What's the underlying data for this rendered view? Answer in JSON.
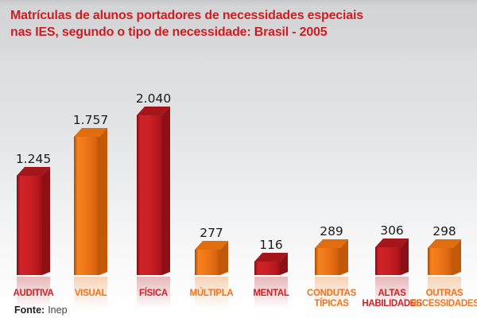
{
  "title": {
    "line1": "Matrículas de alunos portadores de necessidades especiais",
    "line2": "nas IES, segundo o tipo de necessidade: Brasil - 2005"
  },
  "source": {
    "label": "Fonte:",
    "value": "Inep"
  },
  "chart_data": {
    "type": "bar",
    "title": "Matrículas de alunos portadores de necessidades especiais nas IES, segundo o tipo de necessidade: Brasil - 2005",
    "categories": [
      "Auditiva",
      "Visual",
      "Física",
      "Múltipla",
      "Mental",
      "Condutas Típicas",
      "Altas Habilidades",
      "Outras Necessidades"
    ],
    "category_display": [
      [
        "AUDITIVA"
      ],
      [
        "VISUAL"
      ],
      [
        "FÍSICA"
      ],
      [
        "MÚLTIPLA"
      ],
      [
        "MENTAL"
      ],
      [
        "CONDUTAS",
        "TÍPICAS"
      ],
      [
        "ALTAS",
        "HABILIDADES"
      ],
      [
        "OUTRAS",
        "NECESSIDADES"
      ]
    ],
    "values": [
      1245,
      1757,
      2040,
      277,
      116,
      289,
      306,
      298
    ],
    "value_labels": [
      "1.245",
      "1.757",
      "2.040",
      "277",
      "116",
      "289",
      "306",
      "298"
    ],
    "bar_palette": [
      "red",
      "orange",
      "red",
      "orange",
      "red",
      "orange",
      "red",
      "orange"
    ],
    "colors": {
      "red": "#c9191f",
      "orange": "#ef7518",
      "label_red": "#cc2127",
      "label_orange": "#ee7420",
      "value_text": "#1b1b1b",
      "title_text": "#ce1d22"
    },
    "xlabel": "",
    "ylabel": "",
    "ylim": [
      0,
      2200
    ],
    "grid": false,
    "legend": false,
    "style": "3d-columns-with-reflection"
  }
}
